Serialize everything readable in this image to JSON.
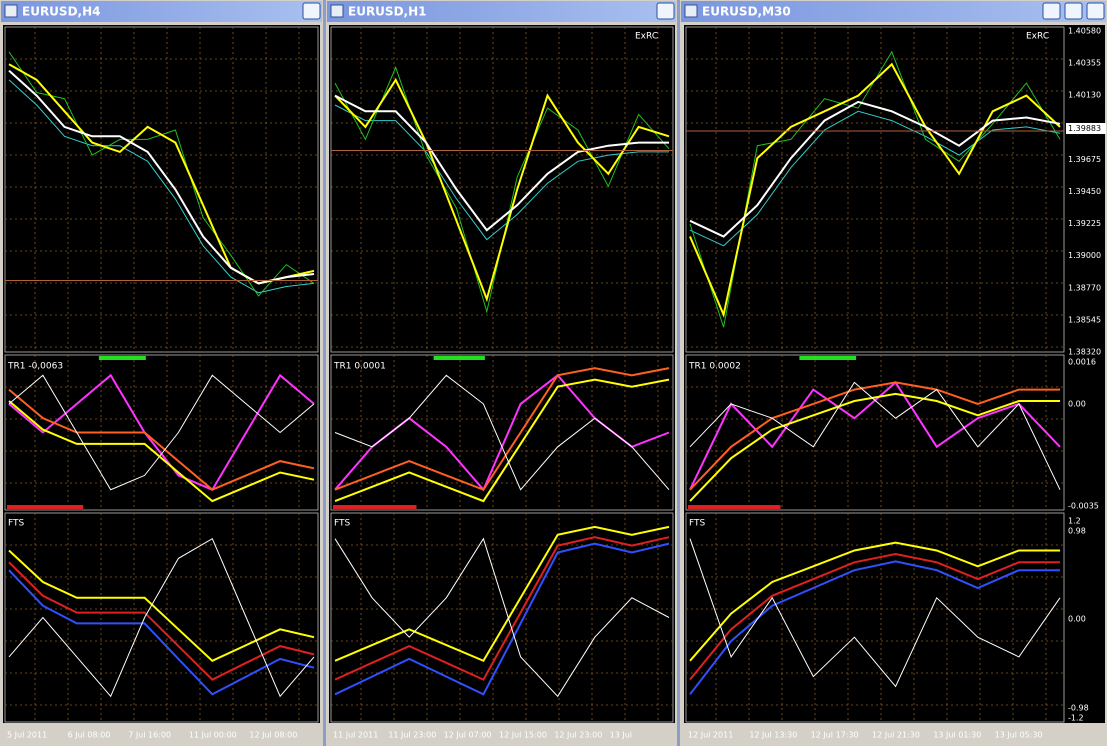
{
  "windows": [
    {
      "title": "EURUSD,H4",
      "indicator": "TR1 -0,0063",
      "fts": "FTS",
      "dates": [
        "5 Jul 2011",
        "6 Jul 08:00",
        "7 Jul 16:00",
        "11 Jul 00:00",
        "12 Jul 08:00"
      ]
    },
    {
      "title": "EURUSD,H1",
      "label": "ExRC",
      "indicator": "TR1 0.0001",
      "fts": "FTS",
      "dates": [
        "11 Jul 2011",
        "11 Jul 23:00",
        "12 Jul 07:00",
        "12 Jul 15:00",
        "12 Jul 23:00",
        "13 Jul"
      ]
    },
    {
      "title": "EURUSD,M30",
      "label": "ExRC",
      "indicator": "TR1 0.0002",
      "fts": "FTS",
      "dates": [
        "12 Jul 2011",
        "12 Jul 13:30",
        "12 Jul 17:30",
        "12 Jul 21:30",
        "13 Jul 01:30",
        "13 Jul 05:30"
      ]
    }
  ],
  "price_axis": [
    "1.40580",
    "1.40355",
    "1.40130",
    "1.39883",
    "1.39675",
    "1.39450",
    "1.39225",
    "1.39000",
    "1.38770",
    "1.38545",
    "1.38320"
  ],
  "indicator_axis": [
    "0.0016",
    "0.00",
    "-0.0035"
  ],
  "fts_axis": [
    "1.2",
    "0.98",
    "0.00",
    "-0.98",
    "-1.2"
  ]
}
